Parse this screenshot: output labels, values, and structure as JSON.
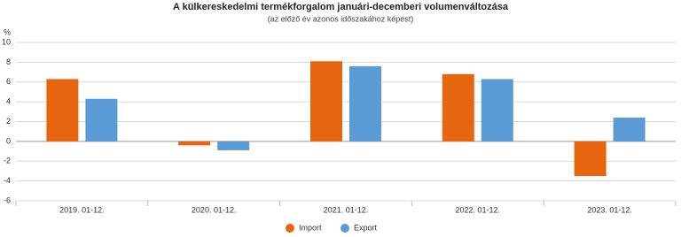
{
  "chart_data": {
    "type": "bar",
    "title": "A külkereskedelmi termékforgalom januári-decemberi volumenváltozása",
    "subtitle": "(az előző év azonos időszakához képest)",
    "y_label": "%",
    "categories": [
      "2019. 01-12.",
      "2020. 01-12.",
      "2021. 01-12.",
      "2022. 01-12.",
      "2023. 01-12."
    ],
    "series": [
      {
        "name": "Import",
        "color": "#e8650f",
        "values": [
          6.3,
          -0.4,
          8.1,
          6.8,
          -3.5
        ]
      },
      {
        "name": "Export",
        "color": "#5b9bd5",
        "values": [
          4.3,
          -0.9,
          7.6,
          6.3,
          2.4
        ]
      }
    ],
    "ylim": [
      -6,
      10
    ],
    "yticks": [
      -6,
      -4,
      -2,
      0,
      2,
      4,
      6,
      8,
      10
    ],
    "grid": true
  }
}
